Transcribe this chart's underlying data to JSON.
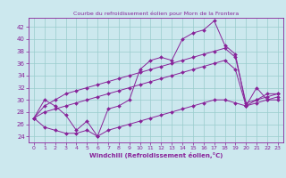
{
  "title": "Courbe du refroidissement éolien pour Morn de la Frontera",
  "xlabel": "Windchill (Refroidissement éolien,°C)",
  "background_color": "#cce8ee",
  "line_color": "#882299",
  "grid_color": "#99cccc",
  "xlim": [
    -0.5,
    23.5
  ],
  "ylim": [
    23,
    43.5
  ],
  "yticks": [
    24,
    26,
    28,
    30,
    32,
    34,
    36,
    38,
    40,
    42
  ],
  "xticks": [
    0,
    1,
    2,
    3,
    4,
    5,
    6,
    7,
    8,
    9,
    10,
    11,
    12,
    13,
    14,
    15,
    16,
    17,
    18,
    19,
    20,
    21,
    22,
    23
  ],
  "series": {
    "temp": [
      27,
      30,
      29,
      27.5,
      25,
      26.5,
      24,
      28.5,
      29,
      30,
      35,
      36.5,
      37,
      36.5,
      40,
      41,
      41.5,
      43,
      39,
      37.5,
      29,
      32,
      30,
      30
    ],
    "low": [
      27,
      25.5,
      25,
      24.5,
      24.5,
      25,
      24,
      25,
      25.5,
      26,
      26.5,
      27,
      27.5,
      28,
      28.5,
      29,
      29.5,
      30,
      30,
      29.5,
      29,
      29.5,
      30,
      30.5
    ],
    "high": [
      27,
      29,
      30,
      31,
      31.5,
      32,
      32.5,
      33,
      33.5,
      34,
      34.5,
      35,
      35.5,
      36,
      36.5,
      37,
      37.5,
      38,
      38.5,
      37,
      29.5,
      30,
      31,
      31
    ],
    "mid": [
      27,
      28,
      28.5,
      29,
      29.5,
      30,
      30.5,
      31,
      31.5,
      32,
      32.5,
      33,
      33.5,
      34,
      34.5,
      35,
      35.5,
      36,
      36.5,
      35,
      29,
      30,
      30.5,
      31
    ]
  }
}
